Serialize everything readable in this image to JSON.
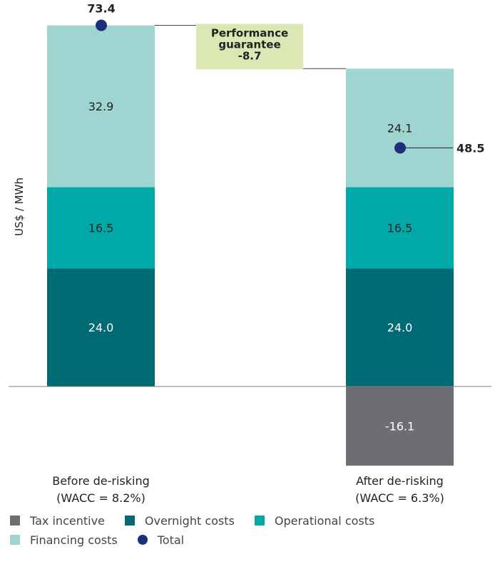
{
  "chart_data": {
    "type": "bar",
    "stacked": true,
    "waterfall": true,
    "ylabel": "US$ / MWh",
    "ylim": [
      -16.1,
      73.4
    ],
    "categories": [
      {
        "label": "Before de-risking",
        "sublabel": "(WACC = 8.2%)"
      },
      {
        "label": "After de-risking",
        "sublabel": "(WACC = 6.3%)"
      }
    ],
    "series": [
      {
        "name": "Tax incentive",
        "color": "#6d6e71",
        "values": [
          0,
          -16.1
        ],
        "labels": [
          "",
          "-16.1"
        ]
      },
      {
        "name": "Overnight costs",
        "color": "#006b73",
        "values": [
          24.0,
          24.0
        ],
        "labels": [
          "24.0",
          "24.0"
        ]
      },
      {
        "name": "Operational costs",
        "color": "#00a9a8",
        "values": [
          16.5,
          16.5
        ],
        "labels": [
          "16.5",
          "16.5"
        ]
      },
      {
        "name": "Financing costs",
        "color": "#9fd5d0",
        "values": [
          32.9,
          24.1
        ],
        "labels": [
          "32.9",
          "24.1"
        ]
      }
    ],
    "totals": {
      "name": "Total",
      "color": "#1b2f7a",
      "values": [
        73.4,
        48.5
      ],
      "labels": [
        "73.4",
        "48.5"
      ]
    },
    "bridge": {
      "line1": "Performance",
      "line2": "guarantee",
      "value": "-8.7",
      "color": "#dbe8b4"
    }
  }
}
